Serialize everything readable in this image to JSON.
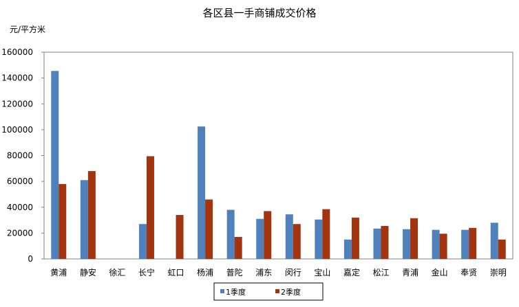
{
  "chart_data": {
    "type": "bar",
    "title": "各区县一手商铺成交价格",
    "ylabel": "元/平方米",
    "xlabel": "",
    "ylim": [
      0,
      160000
    ],
    "yticks": [
      "0",
      "20000",
      "40000",
      "60000",
      "80000",
      "100000",
      "120000",
      "140000",
      "160000"
    ],
    "categories": [
      "黄浦",
      "静安",
      "徐汇",
      "长宁",
      "虹口",
      "杨浦",
      "普陀",
      "浦东",
      "闵行",
      "宝山",
      "嘉定",
      "松江",
      "青浦",
      "金山",
      "奉贤",
      "崇明"
    ],
    "series": [
      {
        "name": "1季度",
        "color": "#4f81bd",
        "values": [
          145500,
          61000,
          0,
          27000,
          0,
          102500,
          38000,
          31000,
          34500,
          30500,
          15000,
          23500,
          23000,
          22500,
          22500,
          28000
        ]
      },
      {
        "name": "2季度",
        "color": "#a2350f",
        "values": [
          58000,
          68000,
          0,
          79500,
          34000,
          46000,
          17000,
          37000,
          27000,
          38500,
          32000,
          25500,
          31500,
          19500,
          24000,
          15000
        ]
      }
    ],
    "grid": false,
    "legend": "bottom"
  }
}
